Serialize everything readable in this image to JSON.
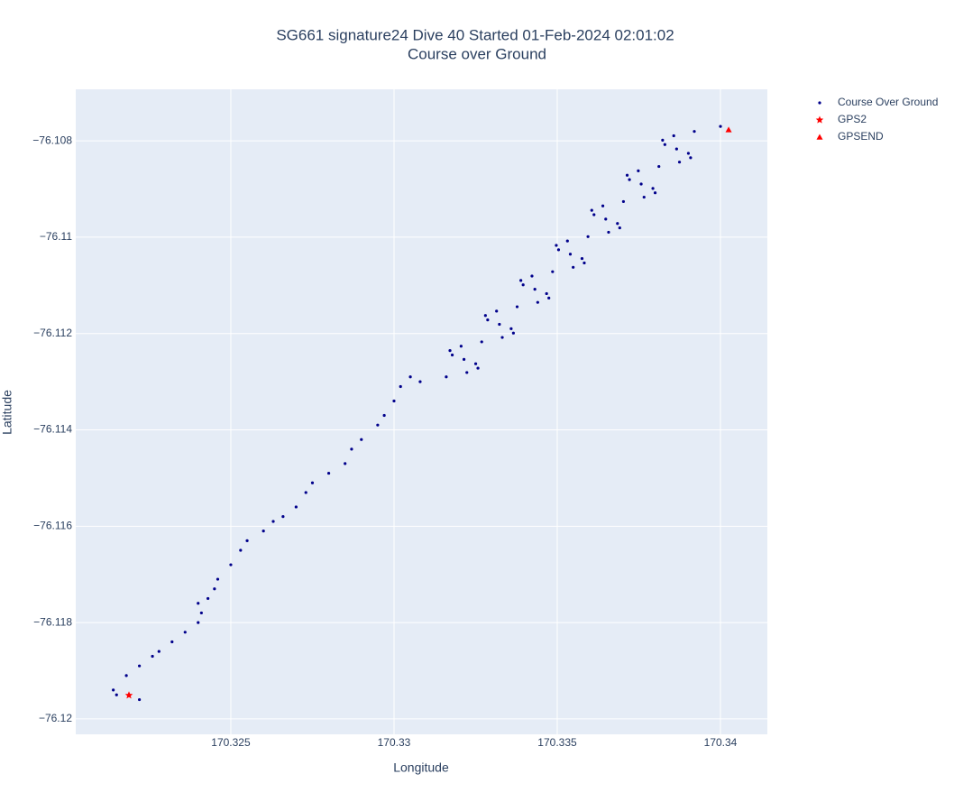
{
  "chart_data": {
    "type": "scatter",
    "title": "SG661 signature24 Dive 40 Started 01-Feb-2024 02:01:02",
    "subtitle": "Course over Ground",
    "x_label": "Longitude",
    "y_label": "Latitude",
    "xlim": [
      170.32025,
      170.341436
    ],
    "ylim": [
      -76.12032,
      -76.10693
    ],
    "xticks": [
      170.325,
      170.33,
      170.335,
      170.34
    ],
    "yticks": [
      {
        "value": -76.108,
        "label": "−76.108"
      },
      {
        "value": -76.11,
        "label": "−76.11"
      },
      {
        "value": -76.112,
        "label": "−76.112"
      },
      {
        "value": -76.114,
        "label": "−76.114"
      },
      {
        "value": -76.116,
        "label": "−76.116"
      },
      {
        "value": -76.118,
        "label": "−76.118"
      },
      {
        "value": -76.12,
        "label": "−76.12"
      }
    ],
    "grid": true,
    "legend": "outside-right",
    "series": [
      {
        "name": "Course Over Ground",
        "color": "#00008b",
        "marker": "circle",
        "x": [
          170.3222,
          170.3215,
          170.3214,
          170.3218,
          170.3222,
          170.3226,
          170.3228,
          170.3232,
          170.3236,
          170.324,
          170.3241,
          170.324,
          170.3243,
          170.3245,
          170.3246,
          170.325,
          170.3253,
          170.3255,
          170.326,
          170.3263,
          170.3266,
          170.327,
          170.3273,
          170.3275,
          170.328,
          170.3285,
          170.3287,
          170.329,
          170.3295,
          170.3297,
          170.33,
          170.3302,
          170.3305,
          170.3308,
          170.3316,
          170.332231,
          170.332571,
          170.332502,
          170.332143,
          170.331784,
          170.331714,
          170.332055,
          170.332686,
          170.333316,
          170.333657,
          170.333588,
          170.333228,
          170.332869,
          170.3328,
          170.333141,
          170.333771,
          170.334402,
          170.334743,
          170.334673,
          170.334314,
          170.333955,
          170.333885,
          170.334226,
          170.334857,
          170.335488,
          170.335828,
          170.335759,
          170.3354,
          170.33504,
          170.334971,
          170.335312,
          170.335942,
          170.336573,
          170.336914,
          170.336845,
          170.336485,
          170.336126,
          170.336057,
          170.336397,
          170.337028,
          170.337659,
          170.337999,
          170.33793,
          170.337571,
          170.337212,
          170.337142,
          170.337483,
          170.338114,
          170.338744,
          170.339085,
          170.339016,
          170.338656,
          170.338297,
          170.338228,
          170.338569,
          170.339199,
          170.34
        ],
        "y": [
          -76.1196,
          -76.1195,
          -76.1194,
          -76.1191,
          -76.1189,
          -76.1187,
          -76.1186,
          -76.1184,
          -76.1182,
          -76.118,
          -76.1178,
          -76.1176,
          -76.1175,
          -76.1173,
          -76.1171,
          -76.1168,
          -76.1165,
          -76.1163,
          -76.1161,
          -76.1159,
          -76.1158,
          -76.1156,
          -76.1153,
          -76.1151,
          -76.1149,
          -76.1147,
          -76.1144,
          -76.1142,
          -76.1139,
          -76.1137,
          -76.1134,
          -76.1131,
          -76.1129,
          -76.113,
          -76.1129,
          -76.112809,
          -76.112718,
          -76.112627,
          -76.112536,
          -76.112445,
          -76.112354,
          -76.112263,
          -76.112172,
          -76.112081,
          -76.11199,
          -76.111899,
          -76.111808,
          -76.111717,
          -76.111626,
          -76.111535,
          -76.111444,
          -76.111353,
          -76.111262,
          -76.111171,
          -76.11108,
          -76.110989,
          -76.110898,
          -76.110807,
          -76.110716,
          -76.110625,
          -76.110534,
          -76.110443,
          -76.110352,
          -76.110261,
          -76.11017,
          -76.110079,
          -76.109988,
          -76.109897,
          -76.109806,
          -76.109715,
          -76.109624,
          -76.109533,
          -76.109442,
          -76.109351,
          -76.10926,
          -76.109169,
          -76.109078,
          -76.108987,
          -76.108896,
          -76.108805,
          -76.108714,
          -76.108623,
          -76.108532,
          -76.108441,
          -76.10835,
          -76.108259,
          -76.108168,
          -76.108077,
          -76.107986,
          -76.107895,
          -76.107804,
          -76.1077
        ]
      },
      {
        "name": "GPS2",
        "color": "#ff0000",
        "marker": "star",
        "x": [
          170.32188
        ],
        "y": [
          -76.11951
        ]
      },
      {
        "name": "GPSEND",
        "color": "#ff0000",
        "marker": "triangle-up",
        "x": [
          170.34025
        ],
        "y": [
          -76.10777
        ]
      }
    ]
  }
}
